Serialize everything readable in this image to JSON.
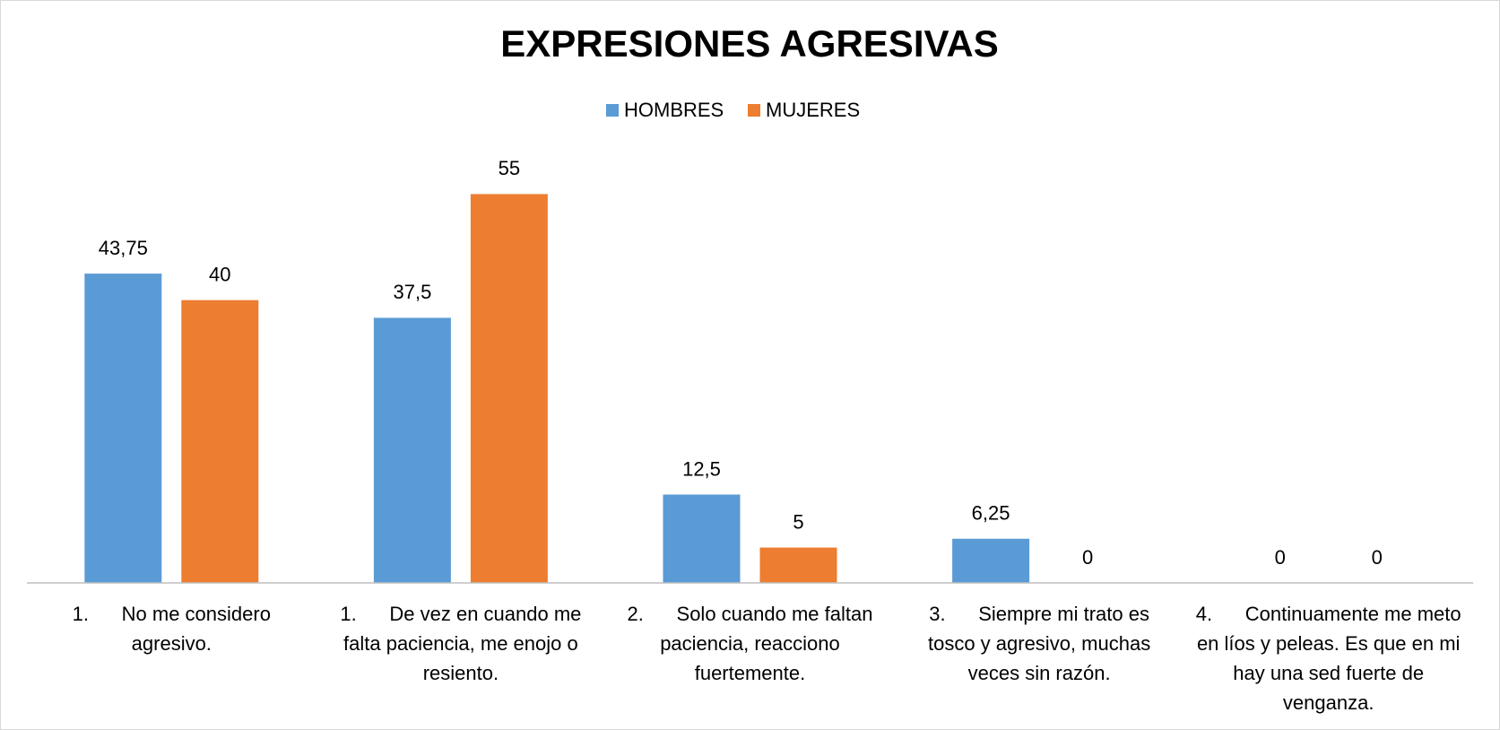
{
  "chart_data": {
    "type": "bar",
    "title": "EXPRESIONES AGRESIVAS",
    "categories": [
      "1.      No me considero agresivo.",
      "1.      De vez en cuando me falta paciencia, me enojo o resiento.",
      "2.      Solo cuando me faltan paciencia, reacciono fuertemente.",
      "3.      Siempre mi trato es tosco y agresivo, muchas veces sin razón.",
      "4.      Continuamente me meto en líos y peleas. Es que en mi hay una sed fuerte de venganza."
    ],
    "series": [
      {
        "name": "HOMBRES",
        "color": "#5b9bd5",
        "values": [
          43.75,
          37.5,
          12.5,
          6.25,
          0
        ],
        "value_labels": [
          "43,75",
          "37,5",
          "12,5",
          "6,25",
          "0"
        ]
      },
      {
        "name": "MUJERES",
        "color": "#ed7d31",
        "values": [
          40,
          55,
          5,
          0,
          0
        ],
        "value_labels": [
          "40",
          "55",
          "5",
          "0",
          "0"
        ]
      }
    ],
    "ylim": [
      0,
      60
    ],
    "legend": "top"
  }
}
